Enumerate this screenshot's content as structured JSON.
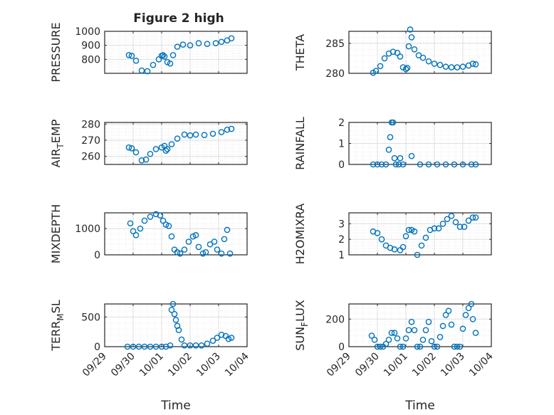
{
  "title": "Figure 2 high",
  "colors": {
    "marker": "#0072BD",
    "axis": "#262626",
    "grid": "#dfdfdf",
    "grid_minor": "#ebebeb"
  },
  "x_axis": {
    "label": "Time",
    "ticks": [
      {
        "value": 0,
        "label": "09/29"
      },
      {
        "value": 1,
        "label": "09/30"
      },
      {
        "value": 2,
        "label": "10/01"
      },
      {
        "value": 3,
        "label": "10/02"
      },
      {
        "value": 4,
        "label": "10/03"
      },
      {
        "value": 5,
        "label": "10/04"
      }
    ]
  },
  "chart_data": [
    {
      "type": "scatter",
      "ylabel": "PRESSURE",
      "ylim": [
        700,
        1000
      ],
      "yticks": [
        {
          "value": 800,
          "label": "800"
        },
        {
          "value": 900,
          "label": "900"
        },
        {
          "value": 1000,
          "label": "1000"
        }
      ],
      "grid": true,
      "marker": "open-circle",
      "series": [
        {
          "x": [
            0.85,
            0.95,
            1.1,
            1.3,
            1.5,
            1.7,
            1.9,
            2.0,
            2.05,
            2.1,
            2.2,
            2.3,
            2.4,
            2.55,
            2.75,
            3.0,
            3.3,
            3.6,
            3.9,
            4.1,
            4.3,
            4.45
          ],
          "y": [
            830,
            825,
            790,
            720,
            715,
            760,
            800,
            825,
            830,
            820,
            780,
            770,
            830,
            890,
            905,
            900,
            915,
            910,
            915,
            925,
            935,
            950
          ]
        }
      ]
    },
    {
      "type": "scatter",
      "ylabel": "THETA",
      "ylim": [
        280,
        287
      ],
      "yticks": [
        {
          "value": 280,
          "label": "280"
        },
        {
          "value": 285,
          "label": "285"
        }
      ],
      "grid": true,
      "marker": "open-circle",
      "series": [
        {
          "x": [
            0.85,
            0.95,
            1.1,
            1.25,
            1.4,
            1.55,
            1.7,
            1.8,
            1.9,
            2.0,
            2.05,
            2.1,
            2.15,
            2.2,
            2.3,
            2.45,
            2.6,
            2.8,
            3.0,
            3.2,
            3.4,
            3.6,
            3.8,
            4.0,
            4.2,
            4.35,
            4.45
          ],
          "y": [
            280.1,
            280.4,
            281.2,
            282.5,
            283.3,
            283.6,
            283.4,
            282.8,
            281.0,
            280.7,
            280.9,
            284.5,
            287.3,
            286.0,
            284.0,
            283.0,
            282.6,
            282.0,
            281.6,
            281.4,
            281.1,
            281.0,
            281.0,
            281.1,
            281.3,
            281.6,
            281.5
          ]
        }
      ]
    },
    {
      "type": "scatter",
      "ylabel": "AIR_TEMP",
      "ylim": [
        255,
        281
      ],
      "yticks": [
        {
          "value": 260,
          "label": "260"
        },
        {
          "value": 270,
          "label": "270"
        },
        {
          "value": 280,
          "label": "280"
        }
      ],
      "grid": true,
      "marker": "open-circle",
      "series": [
        {
          "x": [
            0.85,
            0.95,
            1.1,
            1.3,
            1.45,
            1.6,
            1.8,
            2.0,
            2.1,
            2.15,
            2.2,
            2.35,
            2.55,
            2.8,
            3.0,
            3.2,
            3.5,
            3.8,
            4.1,
            4.3,
            4.45
          ],
          "y": [
            265.5,
            265.0,
            262.5,
            257.5,
            258.0,
            261.5,
            264.5,
            265.5,
            266.5,
            263.5,
            264.5,
            267.5,
            271.0,
            273.5,
            273.0,
            273.5,
            273.2,
            274.0,
            275.0,
            276.5,
            277.0
          ]
        }
      ]
    },
    {
      "type": "scatter",
      "ylabel": "RAINFALL",
      "ylim": [
        0,
        2
      ],
      "yticks": [
        {
          "value": 0,
          "label": "0"
        },
        {
          "value": 1,
          "label": "1"
        },
        {
          "value": 2,
          "label": "2"
        }
      ],
      "grid": true,
      "marker": "open-circle",
      "series": [
        {
          "x": [
            0.85,
            1.0,
            1.15,
            1.3,
            1.4,
            1.45,
            1.5,
            1.55,
            1.6,
            1.65,
            1.75,
            1.8,
            1.9,
            2.2,
            2.5,
            2.8,
            3.1,
            3.4,
            3.7,
            4.0,
            4.3,
            4.45
          ],
          "y": [
            0,
            0,
            0,
            0,
            0.7,
            1.3,
            2.0,
            2.0,
            0.3,
            0,
            0,
            0.3,
            0,
            0.4,
            0,
            0,
            0,
            0,
            0,
            0,
            0,
            0
          ]
        }
      ]
    },
    {
      "type": "scatter",
      "ylabel": "MIXDEPTH",
      "ylim": [
        0,
        1600
      ],
      "yticks": [
        {
          "value": 0,
          "label": "0"
        },
        {
          "value": 1000,
          "label": "1000"
        }
      ],
      "grid": true,
      "marker": "open-circle",
      "series": [
        {
          "x": [
            0.9,
            1.0,
            1.1,
            1.25,
            1.4,
            1.6,
            1.8,
            1.95,
            2.05,
            2.15,
            2.25,
            2.35,
            2.45,
            2.55,
            2.65,
            2.8,
            2.95,
            3.1,
            3.2,
            3.3,
            3.45,
            3.55,
            3.7,
            3.85,
            3.95,
            4.1,
            4.2,
            4.3,
            4.4
          ],
          "y": [
            1200,
            900,
            750,
            1000,
            1300,
            1450,
            1550,
            1500,
            1300,
            1150,
            1100,
            700,
            200,
            100,
            50,
            200,
            500,
            700,
            750,
            300,
            50,
            100,
            400,
            500,
            200,
            50,
            600,
            950,
            50
          ]
        }
      ]
    },
    {
      "type": "scatter",
      "ylabel": "H2OMIXRA",
      "ylim": [
        1,
        3.7
      ],
      "yticks": [
        {
          "value": 1,
          "label": "1"
        },
        {
          "value": 2,
          "label": "2"
        },
        {
          "value": 3,
          "label": "3"
        }
      ],
      "grid": true,
      "marker": "open-circle",
      "series": [
        {
          "x": [
            0.85,
            1.0,
            1.15,
            1.3,
            1.45,
            1.6,
            1.8,
            1.9,
            2.0,
            2.1,
            2.2,
            2.3,
            2.4,
            2.55,
            2.7,
            2.85,
            3.0,
            3.15,
            3.3,
            3.45,
            3.6,
            3.75,
            3.9,
            4.05,
            4.2,
            4.35,
            4.45
          ],
          "y": [
            2.5,
            2.4,
            2.0,
            1.6,
            1.45,
            1.35,
            1.3,
            1.5,
            2.2,
            2.6,
            2.6,
            2.5,
            1.0,
            1.6,
            2.1,
            2.6,
            2.7,
            2.7,
            3.0,
            3.3,
            3.5,
            3.1,
            2.8,
            2.8,
            3.2,
            3.4,
            3.4
          ]
        }
      ]
    },
    {
      "type": "scatter",
      "ylabel": "TERR_MSL",
      "ylim": [
        0,
        720
      ],
      "yticks": [
        {
          "value": 0,
          "label": "0"
        },
        {
          "value": 500,
          "label": "500"
        }
      ],
      "grid": true,
      "marker": "open-circle",
      "series": [
        {
          "x": [
            0.8,
            1.0,
            1.2,
            1.4,
            1.6,
            1.8,
            2.0,
            2.15,
            2.3,
            2.35,
            2.4,
            2.45,
            2.5,
            2.55,
            2.6,
            2.7,
            2.8,
            3.0,
            3.2,
            3.4,
            3.6,
            3.8,
            3.95,
            4.1,
            4.25,
            4.35,
            4.45
          ],
          "y": [
            0,
            0,
            0,
            0,
            0,
            0,
            0,
            0,
            20,
            620,
            720,
            550,
            450,
            350,
            280,
            120,
            20,
            20,
            20,
            20,
            50,
            100,
            150,
            200,
            180,
            130,
            150
          ]
        }
      ]
    },
    {
      "type": "scatter",
      "ylabel": "SUN_FLUX",
      "ylim": [
        0,
        310
      ],
      "yticks": [
        {
          "value": 0,
          "label": "0"
        },
        {
          "value": 200,
          "label": "200"
        }
      ],
      "grid": true,
      "marker": "open-circle",
      "series": [
        {
          "x": [
            0.8,
            0.9,
            1.0,
            1.1,
            1.2,
            1.3,
            1.4,
            1.5,
            1.6,
            1.7,
            1.8,
            1.9,
            2.0,
            2.1,
            2.2,
            2.3,
            2.4,
            2.5,
            2.6,
            2.7,
            2.8,
            2.9,
            3.0,
            3.1,
            3.2,
            3.3,
            3.4,
            3.5,
            3.6,
            3.7,
            3.8,
            3.9,
            4.0,
            4.1,
            4.2,
            4.3,
            4.35,
            4.45
          ],
          "y": [
            80,
            50,
            0,
            0,
            0,
            20,
            50,
            100,
            100,
            60,
            0,
            0,
            60,
            120,
            180,
            120,
            0,
            0,
            50,
            120,
            180,
            40,
            0,
            0,
            70,
            150,
            230,
            260,
            160,
            0,
            0,
            0,
            130,
            230,
            280,
            310,
            200,
            100
          ]
        }
      ]
    }
  ]
}
